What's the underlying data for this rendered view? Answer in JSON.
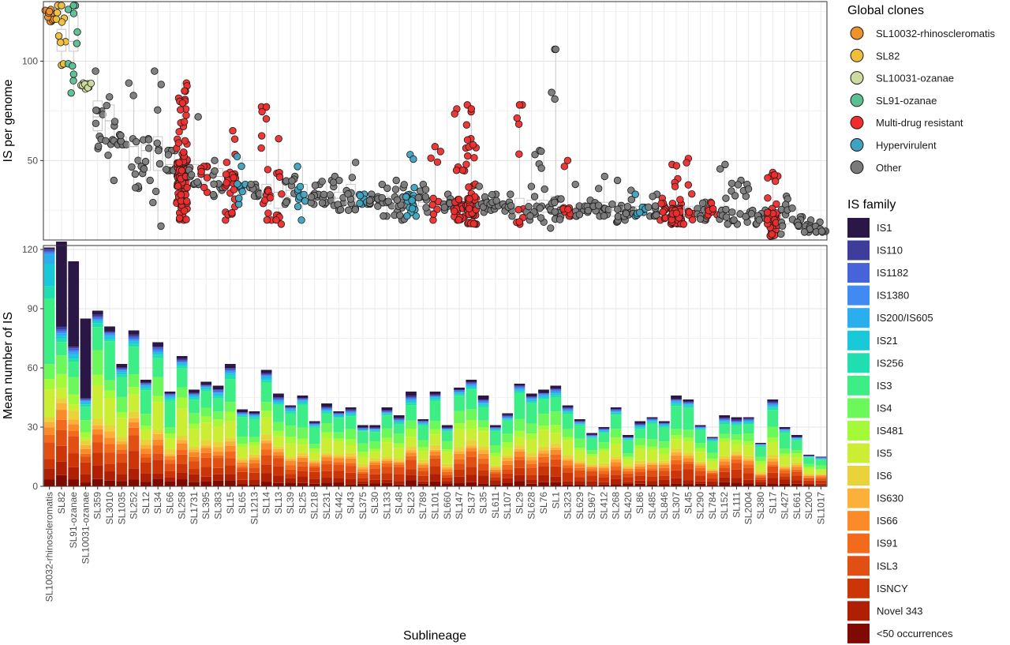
{
  "chart_data": [
    {
      "type": "box-jitter",
      "panel": "top",
      "ylabel": "IS per genome",
      "ylim": [
        10,
        130
      ],
      "yticks": [
        50,
        100
      ],
      "grid": true,
      "categories": [
        "SL10032-rhinoscleromatis",
        "SL82",
        "SL91-ozanae",
        "SL10031-ozanae",
        "SL359",
        "SL3010",
        "SL1035",
        "SL252",
        "SL12",
        "SL34",
        "SL66",
        "SL258",
        "SL1731",
        "SL395",
        "SL383",
        "SL15",
        "SL65",
        "SL1213",
        "SL14",
        "SL13",
        "SL39",
        "SL25",
        "SL218",
        "SL231",
        "SL442",
        "SL43",
        "SL375",
        "SL30",
        "SL133",
        "SL48",
        "SL23",
        "SL789",
        "SL101",
        "SL660",
        "SL147",
        "SL37",
        "SL35",
        "SL611",
        "SL107",
        "SL29",
        "SL628",
        "SL76",
        "SL1",
        "SL323",
        "SL629",
        "SL967",
        "SL412",
        "SL268",
        "SL420",
        "SL86",
        "SL485",
        "SL846",
        "SL307",
        "SL45",
        "SL290",
        "SL784",
        "SL152",
        "SL111",
        "SL2004",
        "SL380",
        "SL17",
        "SL427",
        "SL661",
        "SL200",
        "SL1017"
      ],
      "group": [
        "SL10032-rhinoscleromatis",
        "SL82",
        "SL91-ozanae",
        "SL10031-ozanae",
        "Other",
        "Other",
        "Other",
        "Other",
        "Other",
        "Other",
        "Other",
        "Multi-drug resistant",
        "Other",
        "Multi-drug resistant",
        "Other",
        "Multi-drug resistant",
        "Hypervirulent",
        "Other",
        "Multi-drug resistant",
        "Multi-drug resistant",
        "Other",
        "Hypervirulent",
        "Other",
        "Other",
        "Other",
        "Other",
        "Hypervirulent",
        "Other",
        "Other",
        "Other",
        "Hypervirulent",
        "Other",
        "Multi-drug resistant",
        "Other",
        "Multi-drug resistant",
        "Multi-drug resistant",
        "Other",
        "Other",
        "Other",
        "Multi-drug resistant",
        "Other",
        "Other",
        "Other",
        "Multi-drug resistant",
        "Other",
        "Other",
        "Other",
        "Other",
        "Other",
        "Hypervirulent",
        "Other",
        "Multi-drug resistant",
        "Multi-drug resistant",
        "Multi-drug resistant",
        "Other",
        "Multi-drug resistant",
        "Other",
        "Other",
        "Other",
        "Other",
        "Multi-drug resistant",
        "Other",
        "Other",
        "Other",
        "Other"
      ],
      "medians": [
        121,
        111,
        110,
        87,
        72,
        70,
        60,
        57,
        55,
        55,
        48,
        44,
        42,
        43,
        42,
        41,
        36,
        36,
        33,
        34,
        35,
        34,
        32,
        32,
        31,
        32,
        30,
        30,
        30,
        29,
        30,
        29,
        29,
        29,
        29,
        29,
        28,
        28,
        27,
        27,
        27,
        27,
        27,
        26,
        26,
        26,
        26,
        25,
        25,
        25,
        25,
        25,
        24,
        24,
        24,
        24,
        24,
        23,
        23,
        22,
        22,
        21,
        20,
        17,
        16
      ],
      "q1": [
        120,
        105,
        105,
        86,
        65,
        58,
        58,
        48,
        45,
        45,
        45,
        36,
        38,
        39,
        38,
        36,
        33,
        34,
        28,
        26,
        32,
        30,
        30,
        30,
        27,
        28,
        29,
        28,
        27,
        26,
        27,
        27,
        25,
        28,
        25,
        25,
        26,
        26,
        25,
        23,
        24,
        24,
        23,
        25,
        24,
        25,
        24,
        22,
        23,
        23,
        23,
        24,
        22,
        22,
        22,
        23,
        21,
        22,
        21,
        21,
        19,
        18,
        19,
        16,
        15
      ],
      "q3": [
        123,
        116,
        123,
        88,
        80,
        78,
        62,
        60,
        58,
        62,
        55,
        50,
        48,
        47,
        46,
        45,
        38,
        38,
        38,
        45,
        38,
        38,
        34,
        33,
        34,
        38,
        31,
        31,
        32,
        32,
        33,
        32,
        31,
        31,
        31,
        32,
        30,
        30,
        28,
        31,
        30,
        30,
        32,
        27,
        28,
        27,
        29,
        29,
        27,
        27,
        27,
        27,
        26,
        27,
        26,
        25,
        27,
        25,
        25,
        23,
        24,
        23,
        22,
        18,
        17
      ],
      "lower_whisker": [
        120,
        98,
        84,
        86,
        56,
        40,
        58,
        36,
        40,
        17,
        45,
        20,
        38,
        34,
        32,
        20,
        28,
        32,
        20,
        18,
        28,
        20,
        28,
        28,
        25,
        25,
        28,
        27,
        22,
        20,
        22,
        24,
        20,
        25,
        20,
        18,
        24,
        25,
        22,
        18,
        20,
        19,
        16,
        22,
        22,
        24,
        22,
        19,
        20,
        22,
        22,
        20,
        18,
        18,
        20,
        22,
        18,
        18,
        19,
        18,
        12,
        13,
        17,
        14,
        14
      ],
      "upper_whisker": [
        126,
        128,
        128,
        89,
        95,
        82,
        63,
        89,
        61,
        95,
        55,
        89,
        72,
        47,
        50,
        65,
        52,
        38,
        77,
        61,
        42,
        47,
        38,
        40,
        42,
        49,
        33,
        33,
        38,
        40,
        53,
        38,
        57,
        33,
        76,
        78,
        37,
        33,
        33,
        78,
        53,
        55,
        106,
        50,
        38,
        30,
        42,
        40,
        35,
        33,
        33,
        31,
        48,
        51,
        29,
        29,
        48,
        40,
        38,
        25,
        44,
        32,
        26,
        20,
        19
      ],
      "notable_points": [
        {
          "x": "SL10032-rhinoscleromatis",
          "y": 125
        },
        {
          "x": "SL82",
          "y": 128
        },
        {
          "x": "SL91-ozanae",
          "y": 128
        },
        {
          "x": "SL1",
          "y": 106
        },
        {
          "x": "SL14",
          "y": 77
        },
        {
          "x": "SL29",
          "y": 78
        },
        {
          "x": "SL37",
          "y": 76
        }
      ]
    },
    {
      "type": "stacked-bar",
      "panel": "bottom",
      "xlabel": "Sublineage",
      "ylabel": "Mean number of IS",
      "ylim": [
        0,
        122
      ],
      "yticks": [
        0,
        30,
        60,
        90,
        120
      ],
      "grid": true,
      "categories": [
        "SL10032-rhinoscleromatis",
        "SL82",
        "SL91-ozanae",
        "SL10031-ozanae",
        "SL359",
        "SL3010",
        "SL1035",
        "SL252",
        "SL12",
        "SL34",
        "SL66",
        "SL258",
        "SL1731",
        "SL395",
        "SL383",
        "SL15",
        "SL65",
        "SL1213",
        "SL14",
        "SL13",
        "SL39",
        "SL25",
        "SL218",
        "SL231",
        "SL442",
        "SL43",
        "SL375",
        "SL30",
        "SL133",
        "SL48",
        "SL23",
        "SL789",
        "SL101",
        "SL660",
        "SL147",
        "SL37",
        "SL35",
        "SL611",
        "SL107",
        "SL29",
        "SL628",
        "SL76",
        "SL1",
        "SL323",
        "SL629",
        "SL967",
        "SL412",
        "SL268",
        "SL420",
        "SL86",
        "SL485",
        "SL846",
        "SL307",
        "SL45",
        "SL290",
        "SL784",
        "SL152",
        "SL111",
        "SL2004",
        "SL380",
        "SL17",
        "SL427",
        "SL661",
        "SL200",
        "SL1017"
      ],
      "totals": [
        121,
        124,
        114,
        85,
        89,
        81,
        62,
        79,
        54,
        73,
        48,
        66,
        49,
        53,
        51,
        62,
        39,
        38,
        59,
        47,
        41,
        46,
        33,
        42,
        38,
        40,
        31,
        31,
        40,
        36,
        48,
        34,
        48,
        31,
        50,
        54,
        46,
        31,
        37,
        52,
        47,
        49,
        51,
        41,
        34,
        27,
        30,
        40,
        26,
        33,
        35,
        33,
        46,
        44,
        31,
        25,
        36,
        35,
        35,
        22,
        44,
        30,
        26,
        16,
        15
      ]
    }
  ],
  "legends": {
    "global_clones": {
      "title": "Global clones",
      "items": [
        {
          "label": "SL10032-rhinoscleromatis",
          "color": "#f0922b"
        },
        {
          "label": "SL82",
          "color": "#efbf3b"
        },
        {
          "label": "SL10031-ozanae",
          "color": "#cddc9e"
        },
        {
          "label": "SL91-ozanae",
          "color": "#5cbf94"
        },
        {
          "label": "Multi-drug resistant",
          "color": "#ee2d2d"
        },
        {
          "label": "Hypervirulent",
          "color": "#3fa2c0"
        },
        {
          "label": "Other",
          "color": "#7a7a7a"
        }
      ]
    },
    "is_family": {
      "title": "IS family",
      "items": [
        {
          "label": "IS1",
          "color": "#2b1746"
        },
        {
          "label": "IS110",
          "color": "#3e3d9c"
        },
        {
          "label": "IS1182",
          "color": "#4663da"
        },
        {
          "label": "IS1380",
          "color": "#3f8bf2"
        },
        {
          "label": "IS200/IS605",
          "color": "#2aaeee"
        },
        {
          "label": "IS21",
          "color": "#1ac9d9"
        },
        {
          "label": "IS256",
          "color": "#21deb1"
        },
        {
          "label": "IS3",
          "color": "#3dee86"
        },
        {
          "label": "IS4",
          "color": "#6cf85b"
        },
        {
          "label": "IS481",
          "color": "#a2fa38"
        },
        {
          "label": "IS5",
          "color": "#cbed33"
        },
        {
          "label": "IS6",
          "color": "#ead23b"
        },
        {
          "label": "IS630",
          "color": "#fbb03a"
        },
        {
          "label": "IS66",
          "color": "#fb8b29"
        },
        {
          "label": "IS91",
          "color": "#f26a1c"
        },
        {
          "label": "ISL3",
          "color": "#e14f12"
        },
        {
          "label": "ISNCY",
          "color": "#cb3508"
        },
        {
          "label": "Novel 343",
          "color": "#ae1f04"
        },
        {
          "label": "<50 occurrences",
          "color": "#7e0a02"
        }
      ]
    }
  }
}
